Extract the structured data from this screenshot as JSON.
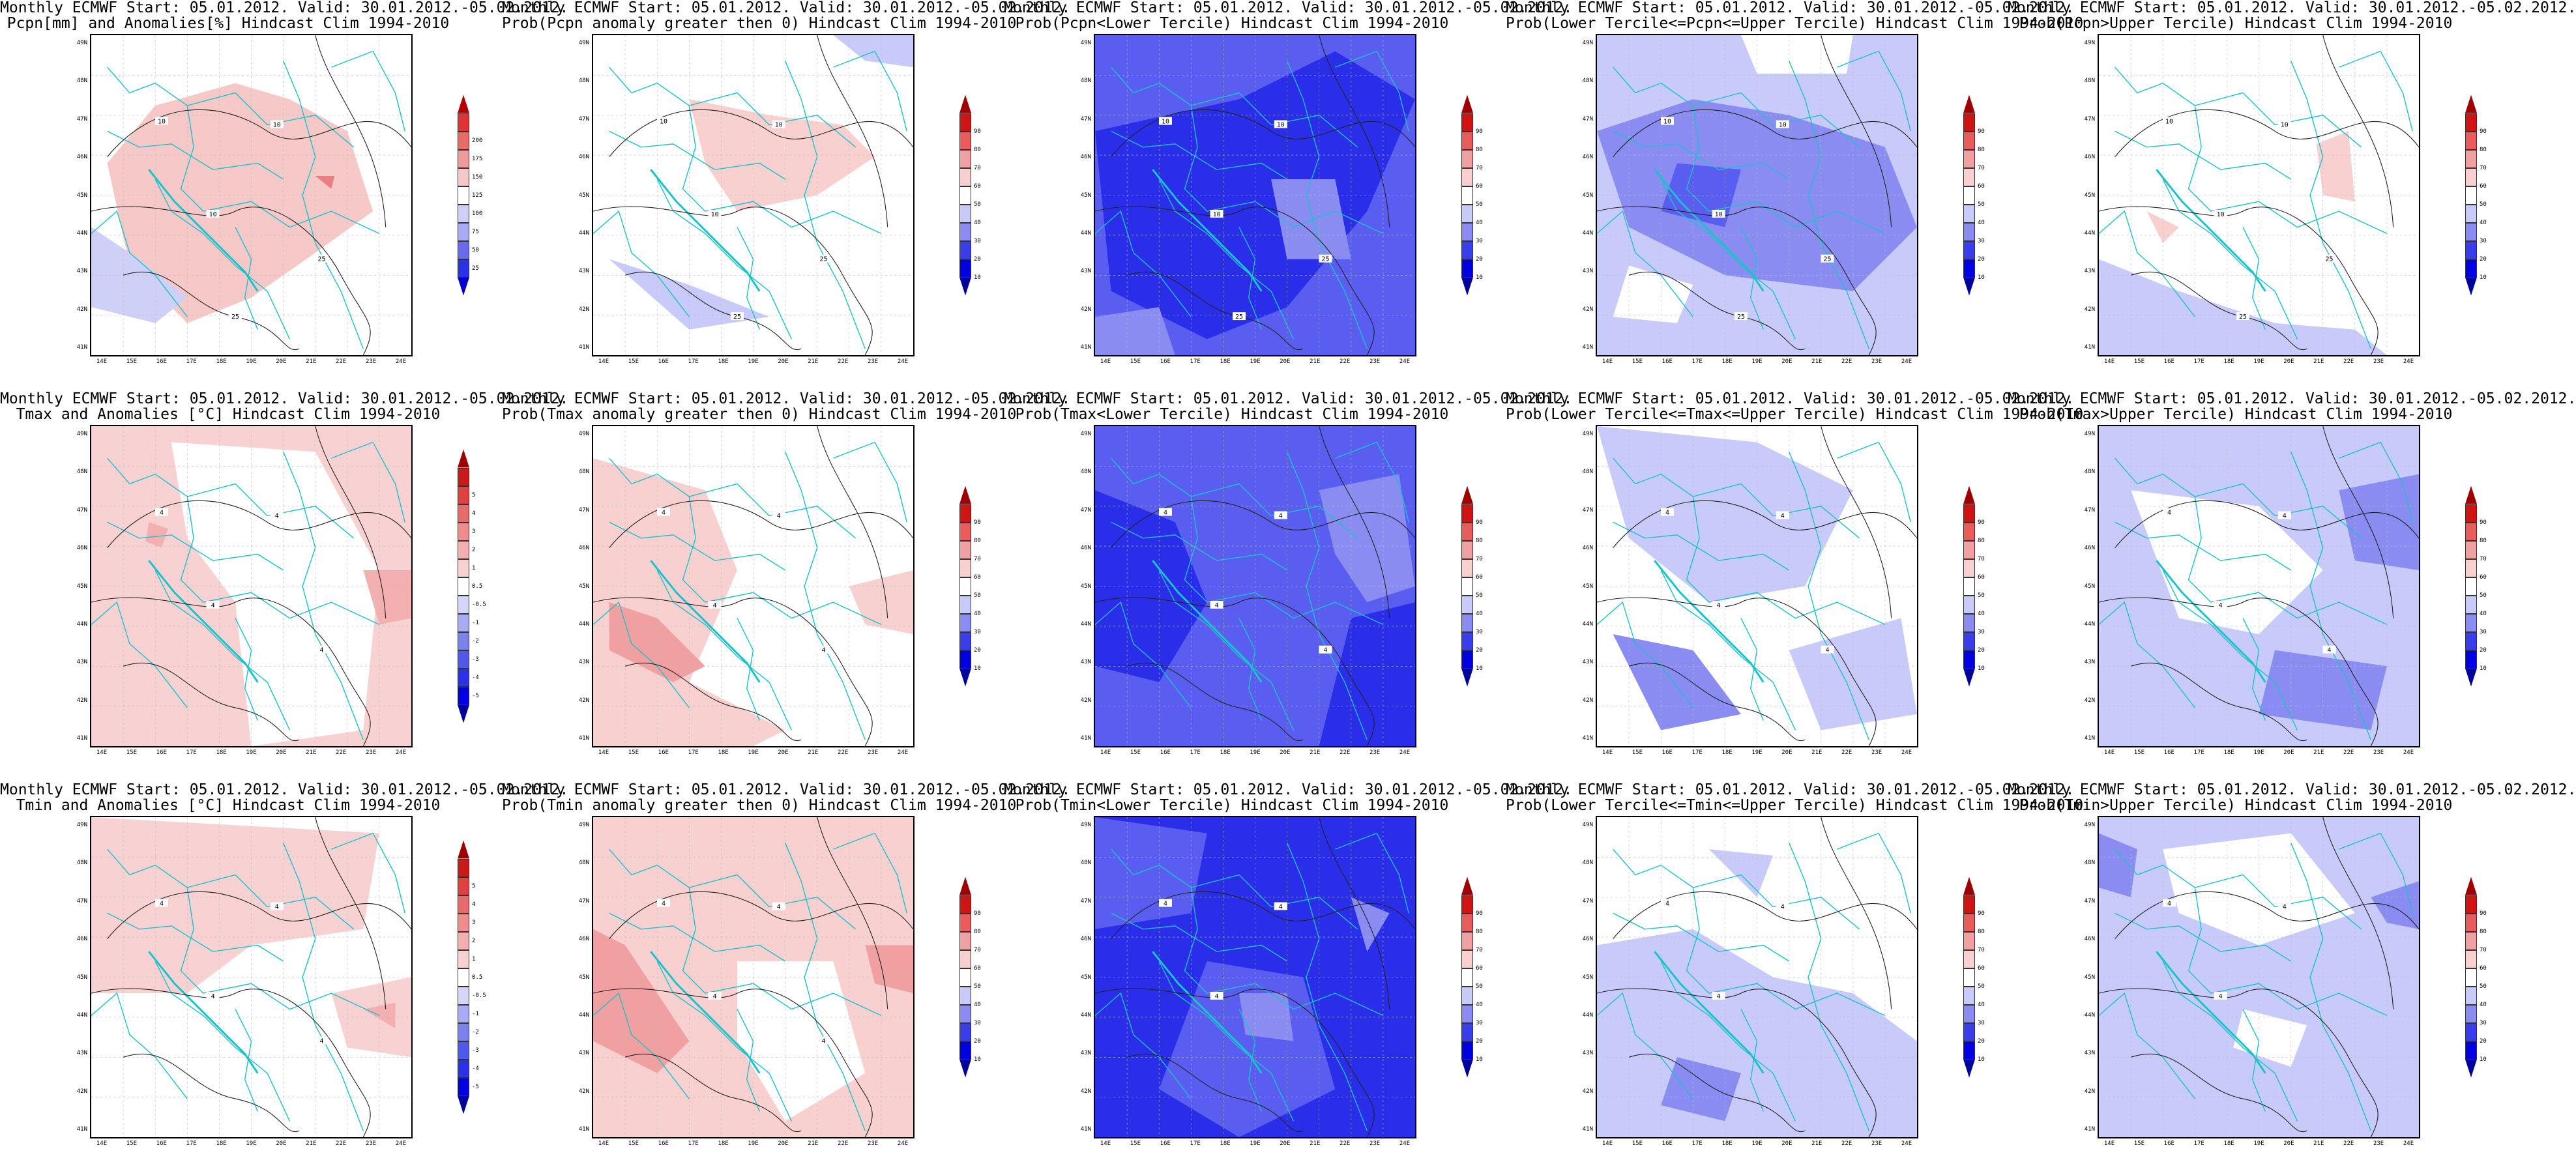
{
  "scale_anom_pcpn": {
    "labels": [
      "25",
      "50",
      "75",
      "100",
      "125",
      "150",
      "175",
      "200"
    ],
    "colors": [
      "#0000cc",
      "#2a32e6",
      "#6a6af0",
      "#a8acf4",
      "#cfd0f8",
      "#ffffff",
      "#f7c8c8",
      "#f29a9a",
      "#ea6a6a",
      "#e03434",
      "#b00000"
    ]
  },
  "scale_anom_temp": {
    "labels": [
      "-5",
      "-4",
      "-3",
      "-2",
      "-1",
      "-0.5",
      "0.5",
      "1",
      "2",
      "3",
      "4",
      "5"
    ],
    "colors": [
      "#00009c",
      "#0000e0",
      "#2a32e6",
      "#5058ee",
      "#7c80f0",
      "#a8acf4",
      "#d4d6fa",
      "#ffffff",
      "#f8d2d2",
      "#f4b0b0",
      "#f08c8c",
      "#ea6a6a",
      "#e04040",
      "#cc1a1a",
      "#9c0000"
    ]
  },
  "scale_prob": {
    "labels": [
      "10",
      "20",
      "30",
      "40",
      "50",
      "60",
      "70",
      "80",
      "90"
    ],
    "colors": [
      "#00009c",
      "#0000e0",
      "#3a3eea",
      "#8a8cf2",
      "#c8cafa",
      "#ffffff",
      "#f8d0d0",
      "#f0a0a0",
      "#e85c5c",
      "#d01414",
      "#9c0000"
    ]
  },
  "x_ticks": [
    "14E",
    "15E",
    "16E",
    "17E",
    "18E",
    "19E",
    "20E",
    "21E",
    "22E",
    "23E",
    "24E"
  ],
  "y_ticks": [
    "49N",
    "48N",
    "47N",
    "46N",
    "45N",
    "44N",
    "43N",
    "42N",
    "41N"
  ],
  "panels": [
    {
      "id": "p00",
      "title1": "Monthly ECMWF Start: 05.01.2012. Valid: 30.01.2012.-05.02.2012.",
      "title2": "Pcpn[mm] and Anomalies[%] Hindcast Clim 1994-2010",
      "scale": "scale_anom_pcpn",
      "base": "#ffffff",
      "fills": [
        [
          "#f7c8c8",
          "0.05,0.4 0.2,0.22 0.45,0.15 0.62,0.2 0.8,0.3 0.88,0.55 0.7,0.68 0.5,0.82 0.3,0.9 0.12,0.72"
        ],
        [
          "#cfd0f8",
          "0.0,0.6 0.15,0.7 0.3,0.82 0.2,0.9 0.0,0.85"
        ],
        [
          "#e88080",
          "0.7,0.44 0.76,0.44 0.75,0.48"
        ]
      ],
      "contour_labels": [
        "10",
        "10",
        "10",
        "25",
        "25"
      ]
    },
    {
      "id": "p01",
      "title1": "Monthly ECMWF Start: 05.01.2012. Valid: 30.01.2012.-05.02.2012.",
      "title2": "Prob(Pcpn anomaly greater then 0) Hindcast Clim 1994-2010",
      "scale": "scale_prob",
      "base": "#ffffff",
      "fills": [
        [
          "#f8d0d0",
          "0.3,0.2 0.55,0.25 0.78,0.28 0.88,0.38 0.7,0.5 0.45,0.55 0.35,0.4"
        ],
        [
          "#c8cafa",
          "0.75,0.0 1.0,0.0 1.0,0.1 0.85,0.08"
        ],
        [
          "#c8cafa",
          "0.05,0.7 0.3,0.78 0.55,0.88 0.3,0.92"
        ]
      ],
      "contour_labels": [
        "10",
        "10",
        "10",
        "25",
        "25"
      ]
    },
    {
      "id": "p02",
      "title1": "Monthly ECMWF Start: 05.01.2012. Valid: 30.01.2012.-05.02.2012.",
      "title2": "Prob(Pcpn<Lower Tercile) Hindcast Clim 1994-2010",
      "scale": "scale_prob",
      "base": "#5a5ef0",
      "fills": [
        [
          "#2a2ee8",
          "0.0,0.3 0.45,0.2 0.75,0.05 1.0,0.2 0.85,0.55 0.6,0.85 0.35,0.95 0.05,0.8"
        ],
        [
          "#8a8cf2",
          "0.55,0.45 0.75,0.45 0.8,0.7 0.6,0.7"
        ],
        [
          "#8a8cf2",
          "0.0,0.88 0.2,0.85 0.25,1.0 0.0,1.0"
        ]
      ],
      "contour_labels": [
        "10",
        "10",
        "10",
        "25",
        "25"
      ]
    },
    {
      "id": "p03",
      "title1": "Monthly ECMWF Start: 05.01.2012. Valid: 30.01.2012.-05.02.2012.",
      "title2": "Prob(Lower Tercile<=Pcpn<=Upper Tercile) Hindcast Clim 1994-2010",
      "scale": "scale_prob",
      "base": "#c8cafa",
      "fills": [
        [
          "#8a8cf2",
          "0.0,0.3 0.3,0.2 0.6,0.25 0.9,0.35 1.0,0.6 0.8,0.8 0.4,0.75 0.1,0.6"
        ],
        [
          "#ffffff",
          "0.45,0.0 0.8,0.0 0.78,0.12 0.5,0.12"
        ],
        [
          "#ffffff",
          "0.1,0.72 0.3,0.78 0.25,0.9 0.05,0.88"
        ],
        [
          "#5a5ef0",
          "0.25,0.4 0.45,0.42 0.4,0.6 0.2,0.55"
        ]
      ],
      "contour_labels": [
        "10",
        "10",
        "10",
        "25",
        "25"
      ]
    },
    {
      "id": "p04",
      "title1": "Monthly ECMWF Start: 05.01.2012. Valid: 30.01.2012.-05.02.2012.",
      "title2": "Prob(Pcpn>Upper Tercile) Hindcast Clim 1994-2010",
      "scale": "scale_prob",
      "base": "#ffffff",
      "fills": [
        [
          "#c8cafa",
          "0.0,0.7 0.25,0.8 0.55,0.9 0.8,0.92 0.9,1.0 0.0,1.0"
        ],
        [
          "#f8d0d0",
          "0.68,0.34 0.78,0.3 0.8,0.52 0.7,0.5"
        ],
        [
          "#f8d0d0",
          "0.15,0.55 0.25,0.6 0.2,0.65"
        ]
      ],
      "contour_labels": [
        "10",
        "10",
        "10",
        "25",
        "25"
      ]
    },
    {
      "id": "p10",
      "title1": "Monthly ECMWF Start: 05.01.2012. Valid: 30.01.2012.-05.02.2012.",
      "title2": "Tmax and Anomalies [°C] Hindcast Clim 1994-2010",
      "scale": "scale_anom_temp",
      "base": "#f8d2d2",
      "fills": [
        [
          "#ffffff",
          "0.25,0.05 0.7,0.08 0.9,0.45 0.85,0.95 0.5,1.0 0.45,0.55 0.3,0.35"
        ],
        [
          "#f4b0b0",
          "0.85,0.45 1.0,0.45 1.0,0.6 0.9,0.62"
        ],
        [
          "#f4b0b0",
          "0.18,0.3 0.24,0.32 0.22,0.38 0.17,0.36"
        ]
      ],
      "contour_labels": [
        "4",
        "4",
        "4",
        "4"
      ]
    },
    {
      "id": "p11",
      "title1": "Monthly ECMWF Start: 05.01.2012. Valid: 30.01.2012.-05.02.2012.",
      "title2": "Prob(Tmax anomaly greater then 0) Hindcast Clim 1994-2010",
      "scale": "scale_prob",
      "base": "#ffffff",
      "fills": [
        [
          "#f8d0d0",
          "0.0,0.1 0.35,0.2 0.45,0.45 0.3,0.8 0.6,0.95 0.5,1.0 0.0,1.0"
        ],
        [
          "#f0a0a0",
          "0.05,0.55 0.2,0.6 0.35,0.75 0.25,0.8 0.05,0.7"
        ],
        [
          "#f8d0d0",
          "0.8,0.5 1.0,0.45 1.0,0.65 0.85,0.62"
        ]
      ],
      "contour_labels": [
        "4",
        "4",
        "4",
        "4"
      ]
    },
    {
      "id": "p12",
      "title1": "Monthly ECMWF Start: 05.01.2012. Valid: 30.01.2012.-05.02.2012.",
      "title2": "Prob(Tmax<Lower Tercile) Hindcast Clim 1994-2010",
      "scale": "scale_prob",
      "base": "#5a5ef0",
      "fills": [
        [
          "#2a2ee8",
          "0.0,0.2 0.25,0.3 0.35,0.55 0.2,0.8 0.0,0.75"
        ],
        [
          "#8a8cf2",
          "0.7,0.2 0.95,0.15 1.0,0.5 0.85,0.55 0.75,0.4"
        ],
        [
          "#2a2ee8",
          "0.8,0.6 1.0,0.55 1.0,1.0 0.7,1.0"
        ]
      ],
      "contour_labels": [
        "4",
        "4",
        "4",
        "4"
      ]
    },
    {
      "id": "p13",
      "title1": "Monthly ECMWF Start: 05.01.2012. Valid: 30.01.2012.-05.02.2012.",
      "title2": "Prob(Lower Tercile<=Tmax<=Upper Tercile) Hindcast Clim 1994-2010",
      "scale": "scale_prob",
      "base": "#ffffff",
      "fills": [
        [
          "#c8cafa",
          "0.0,0.0 0.5,0.05 0.8,0.2 0.65,0.5 0.35,0.55 0.1,0.35"
        ],
        [
          "#8a8cf2",
          "0.05,0.65 0.3,0.7 0.45,0.9 0.2,0.95"
        ],
        [
          "#c8cafa",
          "0.6,0.7 0.95,0.6 1.0,0.9 0.7,0.95"
        ]
      ],
      "contour_labels": [
        "4",
        "4",
        "4",
        "4"
      ]
    },
    {
      "id": "p14",
      "title1": "Monthly ECMWF Start: 05.01.2012. Valid: 30.01.2012.-05.02.2012.",
      "title2": "Prob(Tmax>Upper Tercile) Hindcast Clim 1994-2010",
      "scale": "scale_prob",
      "base": "#c8cafa",
      "fills": [
        [
          "#ffffff",
          "0.1,0.2 0.5,0.25 0.7,0.45 0.5,0.65 0.25,0.6"
        ],
        [
          "#8a8cf2",
          "0.75,0.2 1.0,0.15 1.0,0.45 0.8,0.42"
        ],
        [
          "#8a8cf2",
          "0.55,0.7 0.9,0.75 0.85,0.95 0.5,0.9"
        ]
      ],
      "contour_labels": [
        "4",
        "4",
        "4",
        "4"
      ]
    },
    {
      "id": "p20",
      "title1": "Monthly ECMWF Start: 05.01.2012. Valid: 30.01.2012.-05.02.2012.",
      "title2": "Tmin and Anomalies [°C] Hindcast Clim 1994-2010",
      "scale": "scale_anom_temp",
      "base": "#ffffff",
      "fills": [
        [
          "#f8d2d2",
          "0.0,0.0 0.9,0.05 0.85,0.35 0.5,0.4 0.3,0.55 0.0,0.55"
        ],
        [
          "#f8d2d2",
          "0.75,0.55 1.0,0.5 1.0,0.75 0.8,0.72"
        ],
        [
          "#f4b0b0",
          "0.85,0.6 0.95,0.58 0.95,0.66"
        ]
      ],
      "contour_labels": [
        "4",
        "4",
        "4",
        "4"
      ]
    },
    {
      "id": "p21",
      "title1": "Monthly ECMWF Start: 05.01.2012. Valid: 30.01.2012.-05.02.2012.",
      "title2": "Prob(Tmin anomaly greater then 0) Hindcast Clim 1994-2010",
      "scale": "scale_prob",
      "base": "#f8d0d0",
      "fills": [
        [
          "#ffffff",
          "0.45,0.45 0.75,0.45 0.85,0.8 0.6,0.95 0.45,0.7"
        ],
        [
          "#f0a0a0",
          "0.0,0.35 0.1,0.4 0.3,0.7 0.2,0.8 0.0,0.7"
        ],
        [
          "#f0a0a0",
          "0.85,0.4 1.0,0.4 1.0,0.55 0.88,0.52"
        ]
      ],
      "contour_labels": [
        "4",
        "4",
        "4",
        "4"
      ]
    },
    {
      "id": "p22",
      "title1": "Monthly ECMWF Start: 05.01.2012. Valid: 30.01.2012.-05.02.2012.",
      "title2": "Prob(Tmin<Lower Tercile) Hindcast Clim 1994-2010",
      "scale": "scale_prob",
      "base": "#2a2ee8",
      "fills": [
        [
          "#5a5ef0",
          "0.0,0.0 0.35,0.05 0.3,0.3 0.0,0.35"
        ],
        [
          "#5a5ef0",
          "0.35,0.45 0.65,0.5 0.75,0.85 0.45,1.0 0.2,0.85"
        ],
        [
          "#8a8cf2",
          "0.45,0.55 0.6,0.55 0.62,0.7 0.47,0.68"
        ],
        [
          "#8a8cf2",
          "0.8,0.25 0.92,0.3 0.85,0.42"
        ]
      ],
      "contour_labels": [
        "4",
        "4",
        "4"
      ]
    },
    {
      "id": "p23",
      "title1": "Monthly ECMWF Start: 05.01.2012. Valid: 30.01.2012.-05.02.2012.",
      "title2": "Prob(Lower Tercile<=Tmin<=Upper Tercile) Hindcast Clim 1994-2010",
      "scale": "scale_prob",
      "base": "#ffffff",
      "fills": [
        [
          "#c8cafa",
          "0.0,0.4 0.3,0.35 0.55,0.5 0.8,0.55 1.0,0.7 1.0,1.0 0.0,1.0"
        ],
        [
          "#8a8cf2",
          "0.25,0.75 0.45,0.8 0.4,0.95 0.2,0.9"
        ],
        [
          "#c8cafa",
          "0.35,0.1 0.55,0.12 0.5,0.25"
        ]
      ],
      "contour_labels": [
        "4",
        "4",
        "4"
      ]
    },
    {
      "id": "p24",
      "title1": "Monthly ECMWF Start: 05.01.2012. Valid: 30.01.2012.-05.02.2012.",
      "title2": "Prob(Tmin>Upper Tercile) Hindcast Clim 1994-2010",
      "scale": "scale_prob",
      "base": "#c8cafa",
      "fills": [
        [
          "#ffffff",
          "0.2,0.1 0.6,0.05 0.8,0.3 0.5,0.4 0.25,0.3"
        ],
        [
          "#8a8cf2",
          "0.0,0.05 0.12,0.1 0.1,0.25 0.0,0.22"
        ],
        [
          "#8a8cf2",
          "0.85,0.25 1.0,0.2 1.0,0.35 0.9,0.33"
        ],
        [
          "#ffffff",
          "0.45,0.6 0.65,0.65 0.6,0.78 0.42,0.72"
        ]
      ],
      "contour_labels": [
        "4",
        "4",
        "4"
      ]
    }
  ]
}
